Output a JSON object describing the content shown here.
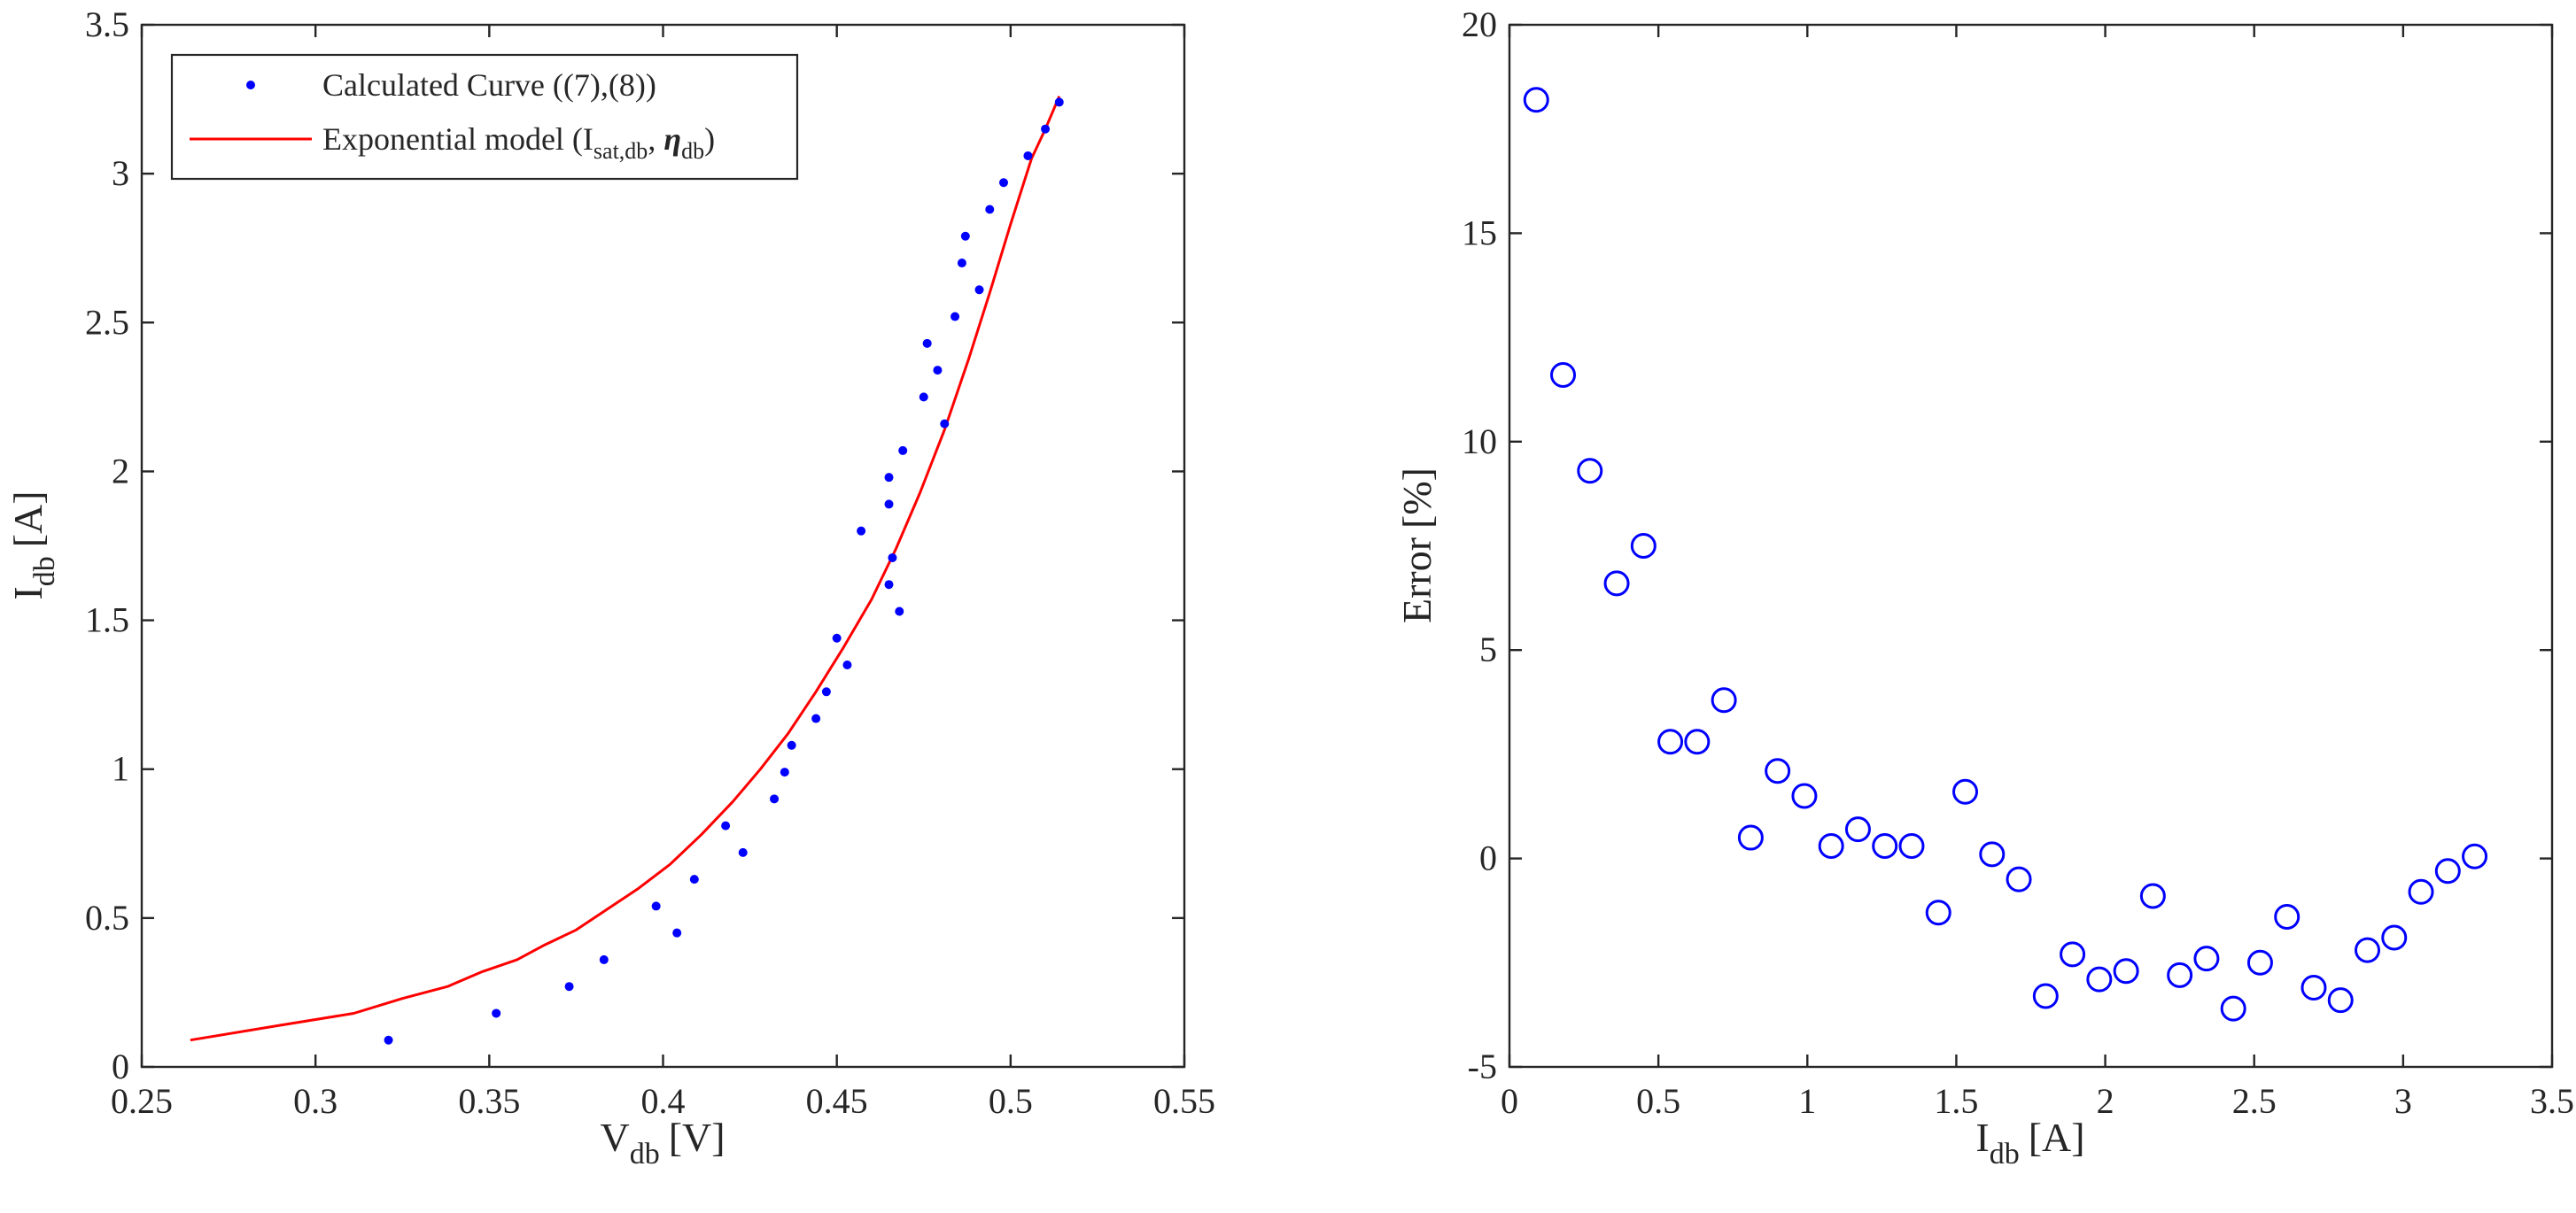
{
  "figure": {
    "title": ""
  },
  "chart_data": [
    {
      "type": "scatter+line",
      "title": "",
      "xlabel": {
        "main": "V",
        "sub": "db",
        "unit": "[V]"
      },
      "ylabel": {
        "main": "I",
        "sub": "db",
        "unit": "[A]"
      },
      "xlim": [
        0.25,
        0.55
      ],
      "ylim": [
        0,
        3.5
      ],
      "xticks": [
        0.25,
        0.3,
        0.35,
        0.4,
        0.45,
        0.5,
        0.55
      ],
      "xtick_labels": [
        "0.25",
        "0.3",
        "0.35",
        "0.4",
        "0.45",
        "0.5",
        "0.55"
      ],
      "yticks": [
        0,
        0.5,
        1,
        1.5,
        2,
        2.5,
        3,
        3.5
      ],
      "ytick_labels": [
        "0",
        "0.5",
        "1",
        "1.5",
        "2",
        "2.5",
        "3",
        "3.5"
      ],
      "grid": false,
      "legend": {
        "position": "top-left",
        "entries": [
          {
            "label": "Calculated Curve ((7),(8))",
            "marker": "dot",
            "color": "#0000ff"
          },
          {
            "label_parts": [
              "Exponential model (I",
              "sat,db",
              ", ",
              "η",
              "db",
              ")"
            ],
            "marker": "line",
            "color": "#ff0000"
          }
        ]
      },
      "series": [
        {
          "name": "Calculated Curve ((7),(8))",
          "kind": "points",
          "color": "#0000ff",
          "x": [
            0.321,
            0.352,
            0.373,
            0.383,
            0.398,
            0.404,
            0.409,
            0.418,
            0.423,
            0.432,
            0.435,
            0.437,
            0.444,
            0.447,
            0.45,
            0.453,
            0.457,
            0.465,
            0.466,
            0.468,
            0.469,
            0.465,
            0.465,
            0.475,
            0.476,
            0.479,
            0.481,
            0.484,
            0.486,
            0.487,
            0.491,
            0.494,
            0.498,
            0.505,
            0.51,
            0.514
          ],
          "y": [
            0.09,
            0.18,
            0.27,
            0.36,
            0.54,
            0.45,
            0.63,
            0.81,
            0.72,
            0.9,
            0.99,
            1.08,
            1.17,
            1.26,
            1.44,
            1.35,
            1.8,
            1.62,
            1.71,
            1.53,
            2.07,
            1.89,
            1.98,
            2.25,
            2.43,
            2.34,
            2.16,
            2.52,
            2.7,
            2.79,
            2.61,
            2.88,
            2.97,
            3.06,
            3.15,
            3.24
          ]
        },
        {
          "name": "Exponential model (Isat,db, ηdb)",
          "kind": "line",
          "color": "#ff0000",
          "x": [
            0.264,
            0.29,
            0.311,
            0.325,
            0.338,
            0.348,
            0.358,
            0.366,
            0.375,
            0.384,
            0.393,
            0.402,
            0.411,
            0.42,
            0.428,
            0.436,
            0.444,
            0.452,
            0.46,
            0.467,
            0.474,
            0.481,
            0.488,
            0.494,
            0.5,
            0.506,
            0.51,
            0.514
          ],
          "y": [
            0.09,
            0.14,
            0.18,
            0.23,
            0.27,
            0.32,
            0.36,
            0.41,
            0.46,
            0.53,
            0.6,
            0.68,
            0.78,
            0.89,
            1.0,
            1.12,
            1.26,
            1.41,
            1.57,
            1.74,
            1.93,
            2.14,
            2.38,
            2.6,
            2.83,
            3.05,
            3.15,
            3.26
          ]
        }
      ]
    },
    {
      "type": "scatter",
      "title": "",
      "xlabel": {
        "main": "I",
        "sub": "db",
        "unit": "[A]"
      },
      "ylabel": {
        "main": "Error",
        "sub": "",
        "unit": "[%]"
      },
      "xlim": [
        0,
        3.5
      ],
      "ylim": [
        -5,
        20
      ],
      "xticks": [
        0,
        0.5,
        1,
        1.5,
        2,
        2.5,
        3,
        3.5
      ],
      "xtick_labels": [
        "0",
        "0.5",
        "1",
        "1.5",
        "2",
        "2.5",
        "3",
        "3.5"
      ],
      "yticks": [
        -5,
        0,
        5,
        10,
        15,
        20
      ],
      "ytick_labels": [
        "-5",
        "0",
        "5",
        "10",
        "15",
        "20"
      ],
      "grid": false,
      "series": [
        {
          "name": "Error",
          "marker": "open-circle",
          "color": "#0000ff",
          "x": [
            0.09,
            0.18,
            0.27,
            0.36,
            0.45,
            0.54,
            0.63,
            0.72,
            0.81,
            0.9,
            0.99,
            1.08,
            1.17,
            1.26,
            1.35,
            1.44,
            1.53,
            1.62,
            1.71,
            1.8,
            1.89,
            1.98,
            2.07,
            2.16,
            2.25,
            2.34,
            2.43,
            2.52,
            2.61,
            2.7,
            2.79,
            2.88,
            2.97,
            3.06,
            3.15,
            3.24
          ],
          "y": [
            18.2,
            11.6,
            9.3,
            6.6,
            7.5,
            2.8,
            2.8,
            3.8,
            0.5,
            2.1,
            1.5,
            0.3,
            0.7,
            0.3,
            0.3,
            -1.3,
            1.6,
            0.1,
            -0.5,
            -3.3,
            -2.3,
            -2.9,
            -2.7,
            -0.9,
            -2.8,
            -2.4,
            -3.6,
            -2.5,
            -1.4,
            -3.1,
            -3.4,
            -2.2,
            -1.9,
            -0.8,
            -0.3,
            0.05
          ]
        }
      ]
    }
  ]
}
